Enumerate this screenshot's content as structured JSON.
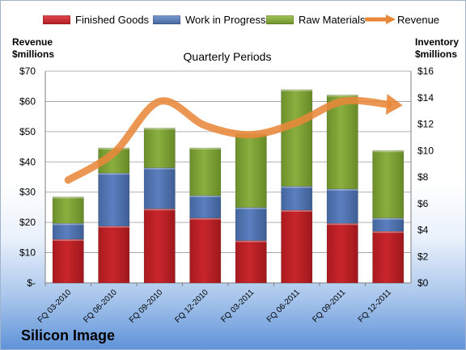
{
  "legend": {
    "finished": "Finished Goods",
    "wip": "Work in Progress",
    "raw": "Raw Materials",
    "revenue": "Revenue"
  },
  "axes": {
    "left_title_line1": "Revenue",
    "left_title_line2": "$millions",
    "right_title_line1": "Inventory",
    "right_title_line2": "$millions"
  },
  "company": "Silicon Image",
  "colors": {
    "finished": "#c8262b",
    "wip": "#5b7fbf",
    "raw": "#8aaf3f",
    "revenue": "#e8873a"
  },
  "chart_data": {
    "type": "bar",
    "stacked": true,
    "title": "Quarterly Periods",
    "categories": [
      "FQ 03-2010",
      "FQ 06-2010",
      "FQ 09-2010",
      "FQ 12-2010",
      "FQ 03-2011",
      "FQ 06-2011",
      "FQ 09-2011",
      "FQ 12-2011"
    ],
    "series": [
      {
        "name": "Finished Goods",
        "axis": "right",
        "values": [
          3.3,
          4.3,
          5.6,
          4.9,
          3.2,
          5.5,
          4.5,
          3.9
        ]
      },
      {
        "name": "Work in Progress",
        "axis": "right",
        "values": [
          1.2,
          4.0,
          3.1,
          1.7,
          2.5,
          1.8,
          2.6,
          1.0
        ]
      },
      {
        "name": "Raw Materials",
        "axis": "right",
        "values": [
          2.0,
          1.9,
          3.0,
          3.6,
          5.6,
          7.3,
          7.1,
          5.1
        ]
      },
      {
        "name": "Revenue",
        "type": "line",
        "axis": "left",
        "values": [
          34,
          43,
          60,
          52,
          49,
          53,
          60,
          59
        ]
      }
    ],
    "y_left": {
      "min": 0,
      "max": 70,
      "ticks": [
        0,
        10,
        20,
        30,
        40,
        50,
        60,
        70
      ],
      "tick_labels": [
        "$-",
        "$10",
        "$20",
        "$30",
        "$40",
        "$50",
        "$60",
        "$70"
      ]
    },
    "y_right": {
      "min": 0,
      "max": 16,
      "ticks": [
        0,
        2,
        4,
        6,
        8,
        10,
        12,
        14,
        16
      ],
      "tick_labels": [
        "$0",
        "$2",
        "$4",
        "$6",
        "$8",
        "$10",
        "$12",
        "$14",
        "$16"
      ]
    },
    "grid": true,
    "legend_position": "top"
  }
}
